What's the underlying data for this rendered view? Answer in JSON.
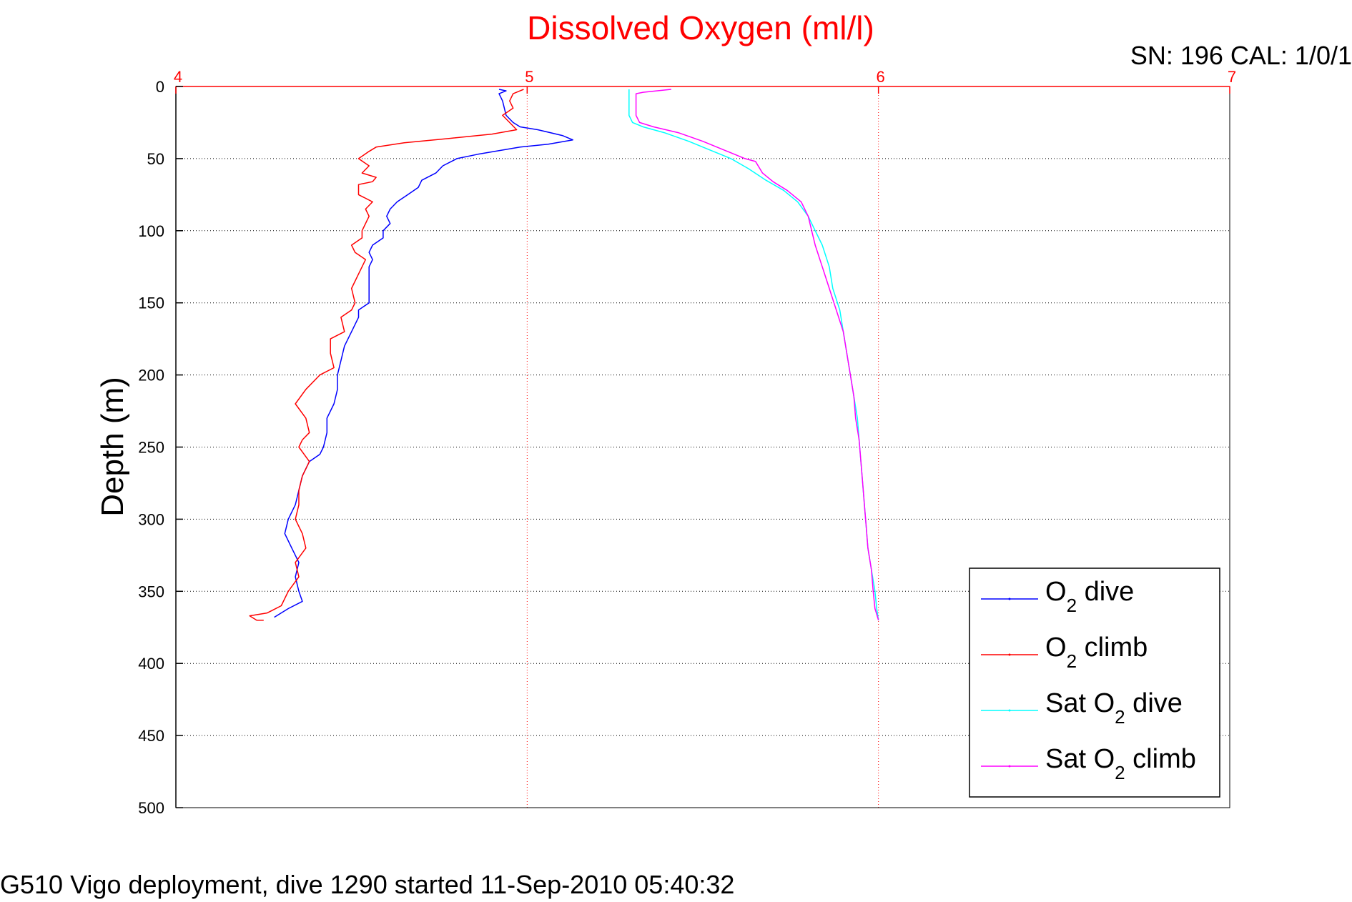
{
  "chart_data": {
    "type": "line",
    "title": "Dissolved Oxygen (ml/l)",
    "ylabel": "Depth (m)",
    "xlabel": "",
    "header_note": "SN: 196  CAL: 1/0/1",
    "caption": "G510 Vigo deployment, dive 1290 started 11-Sep-2010 05:40:32",
    "xlim": [
      4,
      7
    ],
    "ylim": [
      0,
      500
    ],
    "y_reversed": true,
    "x_axis_position": "top",
    "xticks": [
      "4",
      "5",
      "6",
      "7"
    ],
    "yticks": [
      "0",
      "50",
      "100",
      "150",
      "200",
      "250",
      "300",
      "350",
      "400",
      "450",
      "500"
    ],
    "grid": true,
    "legend_position": "bottom-right",
    "series": [
      {
        "name": "O2 dive",
        "legend_main": "O",
        "legend_sub": "2",
        "legend_rest": " dive",
        "color": "#0000ff",
        "points": [
          [
            4.92,
            2
          ],
          [
            4.94,
            3
          ],
          [
            4.92,
            5
          ],
          [
            4.93,
            10
          ],
          [
            4.94,
            20
          ],
          [
            4.96,
            25
          ],
          [
            4.98,
            28
          ],
          [
            5.03,
            30
          ],
          [
            5.1,
            34
          ],
          [
            5.13,
            37
          ],
          [
            5.06,
            40
          ],
          [
            4.98,
            42
          ],
          [
            4.86,
            47
          ],
          [
            4.8,
            50
          ],
          [
            4.76,
            55
          ],
          [
            4.74,
            60
          ],
          [
            4.7,
            65
          ],
          [
            4.69,
            70
          ],
          [
            4.66,
            75
          ],
          [
            4.63,
            80
          ],
          [
            4.61,
            85
          ],
          [
            4.6,
            90
          ],
          [
            4.61,
            95
          ],
          [
            4.59,
            100
          ],
          [
            4.59,
            105
          ],
          [
            4.56,
            110
          ],
          [
            4.55,
            115
          ],
          [
            4.56,
            120
          ],
          [
            4.55,
            125
          ],
          [
            4.55,
            130
          ],
          [
            4.55,
            140
          ],
          [
            4.55,
            150
          ],
          [
            4.52,
            155
          ],
          [
            4.52,
            160
          ],
          [
            4.5,
            170
          ],
          [
            4.48,
            180
          ],
          [
            4.47,
            190
          ],
          [
            4.46,
            200
          ],
          [
            4.46,
            210
          ],
          [
            4.45,
            220
          ],
          [
            4.43,
            230
          ],
          [
            4.43,
            240
          ],
          [
            4.42,
            250
          ],
          [
            4.41,
            255
          ],
          [
            4.38,
            260
          ],
          [
            4.36,
            270
          ],
          [
            4.35,
            280
          ],
          [
            4.34,
            290
          ],
          [
            4.32,
            300
          ],
          [
            4.31,
            310
          ],
          [
            4.33,
            320
          ],
          [
            4.35,
            330
          ],
          [
            4.34,
            340
          ],
          [
            4.35,
            350
          ],
          [
            4.36,
            357
          ],
          [
            4.32,
            362
          ],
          [
            4.28,
            368
          ]
        ]
      },
      {
        "name": "O2 climb",
        "legend_main": "O",
        "legend_sub": "2",
        "legend_rest": " climb",
        "color": "#ff0000",
        "points": [
          [
            4.99,
            2
          ],
          [
            4.96,
            5
          ],
          [
            4.95,
            10
          ],
          [
            4.96,
            15
          ],
          [
            4.93,
            20
          ],
          [
            4.95,
            25
          ],
          [
            4.97,
            30
          ],
          [
            4.9,
            33
          ],
          [
            4.78,
            36
          ],
          [
            4.65,
            39
          ],
          [
            4.57,
            42
          ],
          [
            4.55,
            45
          ],
          [
            4.52,
            50
          ],
          [
            4.55,
            55
          ],
          [
            4.53,
            60
          ],
          [
            4.57,
            63
          ],
          [
            4.56,
            66
          ],
          [
            4.52,
            68
          ],
          [
            4.52,
            75
          ],
          [
            4.56,
            80
          ],
          [
            4.54,
            85
          ],
          [
            4.55,
            90
          ],
          [
            4.53,
            100
          ],
          [
            4.53,
            105
          ],
          [
            4.5,
            110
          ],
          [
            4.51,
            115
          ],
          [
            4.54,
            120
          ],
          [
            4.52,
            130
          ],
          [
            4.5,
            140
          ],
          [
            4.51,
            150
          ],
          [
            4.5,
            155
          ],
          [
            4.47,
            160
          ],
          [
            4.48,
            170
          ],
          [
            4.44,
            175
          ],
          [
            4.44,
            185
          ],
          [
            4.45,
            195
          ],
          [
            4.41,
            200
          ],
          [
            4.37,
            210
          ],
          [
            4.34,
            220
          ],
          [
            4.37,
            230
          ],
          [
            4.38,
            240
          ],
          [
            4.36,
            245
          ],
          [
            4.35,
            250
          ],
          [
            4.38,
            260
          ],
          [
            4.36,
            270
          ],
          [
            4.35,
            280
          ],
          [
            4.35,
            290
          ],
          [
            4.34,
            300
          ],
          [
            4.36,
            310
          ],
          [
            4.37,
            320
          ],
          [
            4.34,
            330
          ],
          [
            4.35,
            340
          ],
          [
            4.32,
            350
          ],
          [
            4.3,
            360
          ],
          [
            4.26,
            365
          ],
          [
            4.21,
            367
          ],
          [
            4.23,
            370
          ],
          [
            4.25,
            370
          ]
        ]
      },
      {
        "name": "Sat O2 dive",
        "legend_main": "Sat O",
        "legend_sub": "2",
        "legend_rest": " dive",
        "color": "#00ffff",
        "points": [
          [
            5.29,
            2
          ],
          [
            5.29,
            10
          ],
          [
            5.29,
            20
          ],
          [
            5.3,
            25
          ],
          [
            5.33,
            28
          ],
          [
            5.39,
            32
          ],
          [
            5.46,
            38
          ],
          [
            5.52,
            44
          ],
          [
            5.58,
            50
          ],
          [
            5.63,
            57
          ],
          [
            5.68,
            65
          ],
          [
            5.73,
            72
          ],
          [
            5.77,
            80
          ],
          [
            5.8,
            90
          ],
          [
            5.82,
            100
          ],
          [
            5.84,
            110
          ],
          [
            5.86,
            125
          ],
          [
            5.87,
            140
          ],
          [
            5.89,
            155
          ],
          [
            5.9,
            170
          ],
          [
            5.91,
            185
          ],
          [
            5.92,
            200
          ],
          [
            5.93,
            215
          ],
          [
            5.94,
            230
          ],
          [
            5.945,
            245
          ],
          [
            5.95,
            260
          ],
          [
            5.955,
            275
          ],
          [
            5.96,
            290
          ],
          [
            5.965,
            305
          ],
          [
            5.97,
            320
          ],
          [
            5.98,
            335
          ],
          [
            5.99,
            350
          ],
          [
            5.995,
            362
          ],
          [
            6.0,
            370
          ]
        ]
      },
      {
        "name": "Sat O2 climb",
        "legend_main": "Sat O",
        "legend_sub": "2",
        "legend_rest": " climb",
        "color": "#ff00ff",
        "points": [
          [
            5.41,
            2
          ],
          [
            5.33,
            4
          ],
          [
            5.31,
            5
          ],
          [
            5.31,
            10
          ],
          [
            5.31,
            20
          ],
          [
            5.32,
            25
          ],
          [
            5.36,
            28
          ],
          [
            5.43,
            32
          ],
          [
            5.5,
            38
          ],
          [
            5.56,
            44
          ],
          [
            5.62,
            50
          ],
          [
            5.65,
            52
          ],
          [
            5.67,
            60
          ],
          [
            5.7,
            66
          ],
          [
            5.74,
            72
          ],
          [
            5.78,
            80
          ],
          [
            5.8,
            90
          ],
          [
            5.81,
            100
          ],
          [
            5.82,
            110
          ],
          [
            5.84,
            125
          ],
          [
            5.86,
            140
          ],
          [
            5.88,
            155
          ],
          [
            5.9,
            170
          ],
          [
            5.91,
            185
          ],
          [
            5.92,
            200
          ],
          [
            5.93,
            215
          ],
          [
            5.935,
            230
          ],
          [
            5.945,
            245
          ],
          [
            5.95,
            260
          ],
          [
            5.955,
            275
          ],
          [
            5.96,
            290
          ],
          [
            5.965,
            305
          ],
          [
            5.97,
            320
          ],
          [
            5.98,
            335
          ],
          [
            5.985,
            350
          ],
          [
            5.99,
            362
          ],
          [
            6.0,
            370
          ]
        ]
      }
    ]
  }
}
